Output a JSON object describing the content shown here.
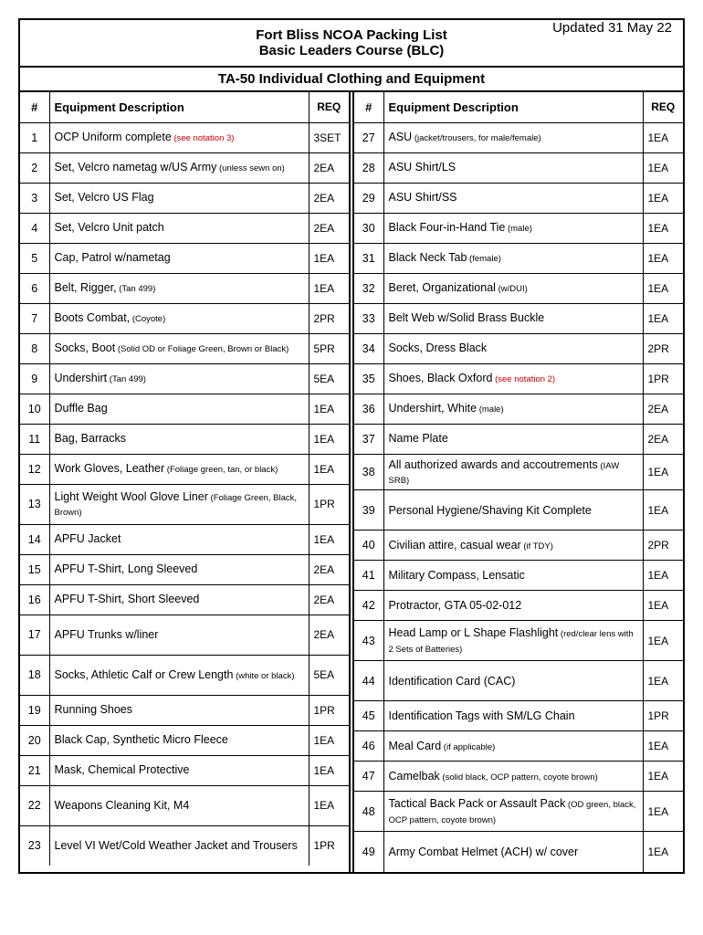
{
  "header": {
    "title": "Fort Bliss NCOA Packing List",
    "subtitle": "Basic Leaders Course (BLC)",
    "updated": "Updated 31 May 22"
  },
  "section_title": "TA-50 Individual Clothing and Equipment",
  "column_headers": {
    "num": "#",
    "desc": "Equipment Description",
    "req": "REQ"
  },
  "left_rows": [
    {
      "num": "1",
      "desc": "OCP Uniform complete",
      "note": "(see notation 3)",
      "note_red": true,
      "req": "3SET"
    },
    {
      "num": "2",
      "desc": "Set, Velcro nametag w/US Army",
      "note": "(unless sewn on)",
      "req": "2EA"
    },
    {
      "num": "3",
      "desc": "Set, Velcro US Flag",
      "req": "2EA"
    },
    {
      "num": "4",
      "desc": "Set, Velcro Unit patch",
      "req": "2EA"
    },
    {
      "num": "5",
      "desc": "Cap, Patrol w/nametag",
      "req": "1EA"
    },
    {
      "num": "6",
      "desc": "Belt, Rigger,",
      "note": "(Tan 499)",
      "req": "1EA"
    },
    {
      "num": "7",
      "desc": "Boots Combat,",
      "note": "(Coyote)",
      "req": "2PR"
    },
    {
      "num": "8",
      "desc": "Socks, Boot",
      "note": "(Solid OD or Foliage Green, Brown or Black)",
      "req": "5PR"
    },
    {
      "num": "9",
      "desc": "Undershirt",
      "note": "(Tan 499)",
      "req": "5EA"
    },
    {
      "num": "10",
      "desc": "Duffle Bag",
      "req": "1EA"
    },
    {
      "num": "11",
      "desc": "Bag, Barracks",
      "req": "1EA"
    },
    {
      "num": "12",
      "desc": "Work Gloves, Leather",
      "note": "(Foliage green, tan, or black)",
      "req": "1EA"
    },
    {
      "num": "13",
      "desc": "Light Weight Wool Glove Liner",
      "note": "(Foliage Green, Black, Brown)",
      "req": "1PR",
      "tall": true
    },
    {
      "num": "14",
      "desc": "APFU Jacket",
      "req": "1EA"
    },
    {
      "num": "15",
      "desc": "APFU T-Shirt, Long Sleeved",
      "req": "2EA"
    },
    {
      "num": "16",
      "desc": "APFU T-Shirt, Short Sleeved",
      "req": "2EA"
    },
    {
      "num": "17",
      "desc": "APFU Trunks w/liner",
      "req": "2EA",
      "tall": true
    },
    {
      "num": "18",
      "desc": "Socks, Athletic Calf or Crew Length",
      "note": "(white or black)",
      "req": "5EA",
      "tall": true
    },
    {
      "num": "19",
      "desc": "Running Shoes",
      "req": "1PR"
    },
    {
      "num": "20",
      "desc": "Black Cap, Synthetic Micro Fleece",
      "req": "1EA"
    },
    {
      "num": "21",
      "desc": "Mask, Chemical Protective",
      "req": "1EA"
    },
    {
      "num": "22",
      "desc": "Weapons Cleaning Kit, M4",
      "req": "1EA",
      "tall": true
    },
    {
      "num": "23",
      "desc": "Level VI Wet/Cold Weather Jacket and Trousers",
      "req": "1PR",
      "tall": true
    }
  ],
  "right_rows": [
    {
      "num": "27",
      "desc": "ASU",
      "note": "(jacket/trousers, for male/female)",
      "req": "1EA"
    },
    {
      "num": "28",
      "desc": "ASU Shirt/LS",
      "req": "1EA"
    },
    {
      "num": "29",
      "desc": "ASU Shirt/SS",
      "req": "1EA"
    },
    {
      "num": "30",
      "desc": "Black Four-in-Hand Tie",
      "note": "(male)",
      "req": "1EA"
    },
    {
      "num": "31",
      "desc": "Black Neck Tab",
      "note": "(female)",
      "req": "1EA"
    },
    {
      "num": "32",
      "desc": "Beret, Organizational",
      "note": "(w/DUI)",
      "req": "1EA"
    },
    {
      "num": "33",
      "desc": "Belt Web w/Solid Brass Buckle",
      "req": "1EA"
    },
    {
      "num": "34",
      "desc": "Socks, Dress Black",
      "req": "2PR"
    },
    {
      "num": "35",
      "desc": "Shoes, Black Oxford",
      "note": "(see notation 2)",
      "note_red": true,
      "req": "1PR"
    },
    {
      "num": "36",
      "desc": "Undershirt, White",
      "note": "(male)",
      "req": "2EA"
    },
    {
      "num": "37",
      "desc": "Name Plate",
      "req": "2EA"
    },
    {
      "num": "38",
      "desc": "All authorized awards and accoutrements",
      "note": "(IAW SRB)",
      "req": "1EA"
    },
    {
      "num": "39",
      "desc": "Personal Hygiene/Shaving Kit Complete",
      "req": "1EA",
      "tall": true
    },
    {
      "num": "40",
      "desc": "Civilian attire, casual wear",
      "note": "(if TDY)",
      "req": "2PR"
    },
    {
      "num": "41",
      "desc": "Military Compass, Lensatic",
      "req": "1EA"
    },
    {
      "num": "42",
      "desc": "Protractor, GTA 05-02-012",
      "req": "1EA"
    },
    {
      "num": "43",
      "desc": "Head Lamp or L Shape Flashlight",
      "note": "(red/clear lens with 2 Sets of Batteries)",
      "req": "1EA",
      "tall": true
    },
    {
      "num": "44",
      "desc": "Identification Card (CAC)",
      "req": "1EA",
      "tall": true
    },
    {
      "num": "45",
      "desc": "Identification Tags with SM/LG Chain",
      "req": "1PR"
    },
    {
      "num": "46",
      "desc": "Meal Card",
      "note": "(if applicable)",
      "req": "1EA"
    },
    {
      "num": "47",
      "desc": "Camelbak",
      "note": "(solid black, OCP pattern, coyote brown)",
      "req": "1EA"
    },
    {
      "num": "48",
      "desc": "Tactical Back Pack or Assault Pack",
      "note": "(OD green, black, OCP pattern, coyote brown)",
      "req": "1EA",
      "tall": true
    },
    {
      "num": "49",
      "desc": "Army Combat Helmet (ACH) w/ cover",
      "req": "1EA",
      "tall": true
    }
  ]
}
